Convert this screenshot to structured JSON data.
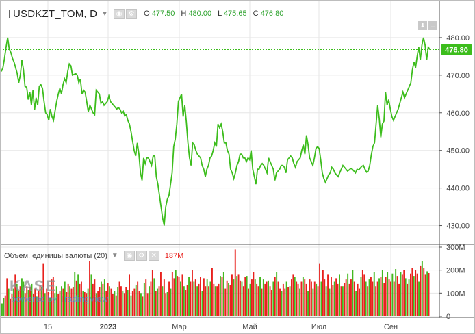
{
  "header": {
    "symbol": "USDKZT_TOM, D",
    "o_label": "O",
    "o_value": "477.50",
    "h_label": "H",
    "h_value": "480.00",
    "l_label": "L",
    "l_value": "475.65",
    "c_label": "C",
    "c_value": "476.80"
  },
  "volume_legend": {
    "label": "Объем, единицы валюты (20)",
    "value": "187M"
  },
  "watermark": {
    "brand": "KASE",
    "powered": "powered by TradingView"
  },
  "price_tag": "476.80",
  "colors": {
    "line": "#3cbd1c",
    "up": "#43b81f",
    "down": "#e8211d",
    "tag": "#3cbd1c",
    "grid": "#e6e6e6"
  },
  "chart_data": [
    {
      "type": "line",
      "title": "USDKZT_TOM, D",
      "ylim": [
        425,
        490
      ],
      "y_ticks": [
        "480.00",
        "470.00",
        "460.00",
        "450.00",
        "440.00",
        "430.00"
      ],
      "x_ticks": [
        "15",
        "2023",
        "Мар",
        "Май",
        "Июл",
        "Сен"
      ],
      "last_value": 476.8,
      "series": [
        {
          "values": [
            471,
            472,
            474.5,
            477.5,
            480,
            477,
            476,
            474.5,
            473.5,
            472,
            470.5,
            468,
            470,
            474,
            471.5,
            467,
            466.8,
            463.5,
            465.5,
            462,
            466,
            460.8,
            464,
            462,
            467,
            467.5,
            466.5,
            463,
            460,
            459.5,
            458,
            461,
            459,
            458,
            460.5,
            463,
            465,
            466.5,
            465,
            467.5,
            469,
            468,
            471,
            473,
            472.5,
            470,
            470.2,
            470.4,
            470,
            468,
            469,
            465,
            466,
            465.5,
            463,
            460.3,
            462,
            461,
            460,
            459.5,
            466,
            465.5,
            465,
            462.5,
            463,
            462,
            462.5,
            463,
            464.5,
            463,
            462.5,
            462,
            461.5,
            461,
            461.4,
            461,
            460,
            460.5,
            459.2,
            459.5,
            458,
            457,
            455,
            452.5,
            450,
            448.5,
            452,
            449,
            444,
            442,
            448,
            446.5,
            448,
            448,
            447,
            446,
            448.5,
            448.5,
            443,
            441,
            438,
            435,
            432,
            430,
            435,
            437,
            438,
            441,
            444,
            451,
            453,
            457,
            463,
            464,
            465,
            459,
            462,
            457.5,
            452,
            448,
            446,
            452,
            451.5,
            450,
            449,
            448.5,
            448,
            446,
            445,
            443,
            445,
            446,
            448,
            448.5,
            450,
            452,
            451,
            457,
            456,
            457,
            455,
            452,
            452,
            450,
            449,
            445,
            444,
            442.5,
            444,
            446,
            447,
            449,
            449,
            448,
            448,
            447,
            448,
            447.5,
            450,
            445,
            443,
            441,
            445,
            445,
            446,
            446.5,
            446,
            445,
            444,
            448,
            447,
            446,
            445,
            442,
            444,
            444.5,
            445,
            446,
            446,
            445.5,
            444,
            447.5,
            448,
            448.5,
            448,
            446.5,
            445.5,
            447,
            447.5,
            448,
            450,
            451.5,
            449,
            454,
            451.5,
            448,
            447,
            446,
            448,
            450.5,
            451,
            450.5,
            447.5,
            444,
            442.5,
            441.5,
            442.5,
            443.5,
            444,
            445.5,
            445,
            444,
            443.5,
            443,
            444,
            445,
            446,
            445.5,
            445,
            444.5,
            444.8,
            445.2,
            445,
            444.5,
            444,
            445,
            444.8,
            445.3,
            445.8,
            446,
            445,
            444.2,
            444.5,
            446,
            448.8,
            451,
            452,
            457,
            462,
            458.5,
            453.5,
            457,
            457.8,
            465.5,
            462,
            463.5,
            461,
            459,
            458,
            459,
            460,
            461,
            462.5,
            464,
            465.5,
            464,
            465,
            466,
            467,
            468,
            471.5,
            473.5,
            472,
            475,
            477.5,
            474,
            478,
            480,
            478,
            474,
            477.5,
            476.8
          ]
        }
      ]
    },
    {
      "type": "bar",
      "title": "Объем, единицы валюты (20)",
      "ylim": [
        0,
        300
      ],
      "y_ticks": [
        "300M",
        "200M",
        "100M",
        "0"
      ],
      "last_value_label": "187M",
      "values": [
        55,
        80,
        90,
        165,
        120,
        75,
        95,
        120,
        180,
        140,
        110,
        130,
        165,
        150,
        100,
        130,
        115,
        125,
        140,
        95,
        120,
        85,
        110,
        135,
        125,
        230,
        100,
        120,
        105,
        80,
        160,
        170,
        100,
        130,
        95,
        110,
        130,
        120,
        150,
        105,
        140,
        130,
        120,
        125,
        190,
        155,
        180,
        140,
        150,
        110,
        105,
        100,
        120,
        240,
        180,
        140,
        160,
        100,
        110,
        125,
        150,
        140,
        160,
        110,
        145,
        130,
        120,
        95,
        110,
        90,
        125,
        150,
        130,
        110,
        100,
        125,
        115,
        180,
        90,
        110,
        120,
        135,
        150,
        110,
        100,
        85,
        145,
        160,
        100,
        130,
        150,
        200,
        165,
        110,
        120,
        130,
        190,
        130,
        160,
        100,
        105,
        150,
        120,
        190,
        165,
        200,
        175,
        170,
        150,
        180,
        130,
        115,
        135,
        170,
        150,
        200,
        150,
        160,
        130,
        140,
        170,
        110,
        165,
        130,
        160,
        130,
        150,
        210,
        140,
        130,
        130,
        140,
        175,
        170,
        190,
        120,
        155,
        145,
        135,
        180,
        160,
        290,
        175,
        180,
        155,
        150,
        130,
        170,
        175,
        120,
        140,
        160,
        190,
        160,
        140,
        130,
        170,
        120,
        160,
        140,
        150,
        155,
        130,
        115,
        150,
        170,
        190,
        150,
        120,
        110,
        140,
        120,
        150,
        125,
        130,
        160,
        180,
        170,
        150,
        140,
        120,
        150,
        170,
        160,
        140,
        110,
        160,
        150,
        120,
        150,
        140,
        130,
        230,
        150,
        200,
        160,
        130,
        180,
        120,
        170,
        135,
        150,
        165,
        140,
        180,
        130,
        130,
        145,
        160,
        185,
        140,
        160,
        200,
        150,
        110,
        140,
        120,
        170,
        200,
        180,
        150,
        130,
        160,
        170,
        150,
        190,
        130,
        150,
        165,
        170,
        200,
        145,
        170,
        190,
        160,
        150,
        185,
        150,
        205,
        175,
        140,
        190,
        180,
        200,
        165,
        140,
        160,
        185,
        210,
        175,
        200,
        185,
        150,
        220,
        240,
        210,
        180,
        195,
        187
      ],
      "up_down": "ggrrgrrgrgrrggrrgrgrrgrrgrgrrgrrggrrgrgrrgrrgrgrrgrrgrgrrgrrgrgrrgrrgrgrrgrrgrgrrgrrgrgrrgrrgrgrrgrrgrgrrgrrgrgrrgrrgrgrrgrrgrgrrgrrgrgrrgrrgrgrrgrrgrgrrgrrgrgrrgrrgrgrrgrrgrgrrgrrgrgrrgrrgrgrrgrrgrgrrgrrgrgrrgrrgrgrrgrrgrgrrgrrgrgrrgrrgrgrrgrrgrgrrgrrgrgrrgr"
    }
  ]
}
